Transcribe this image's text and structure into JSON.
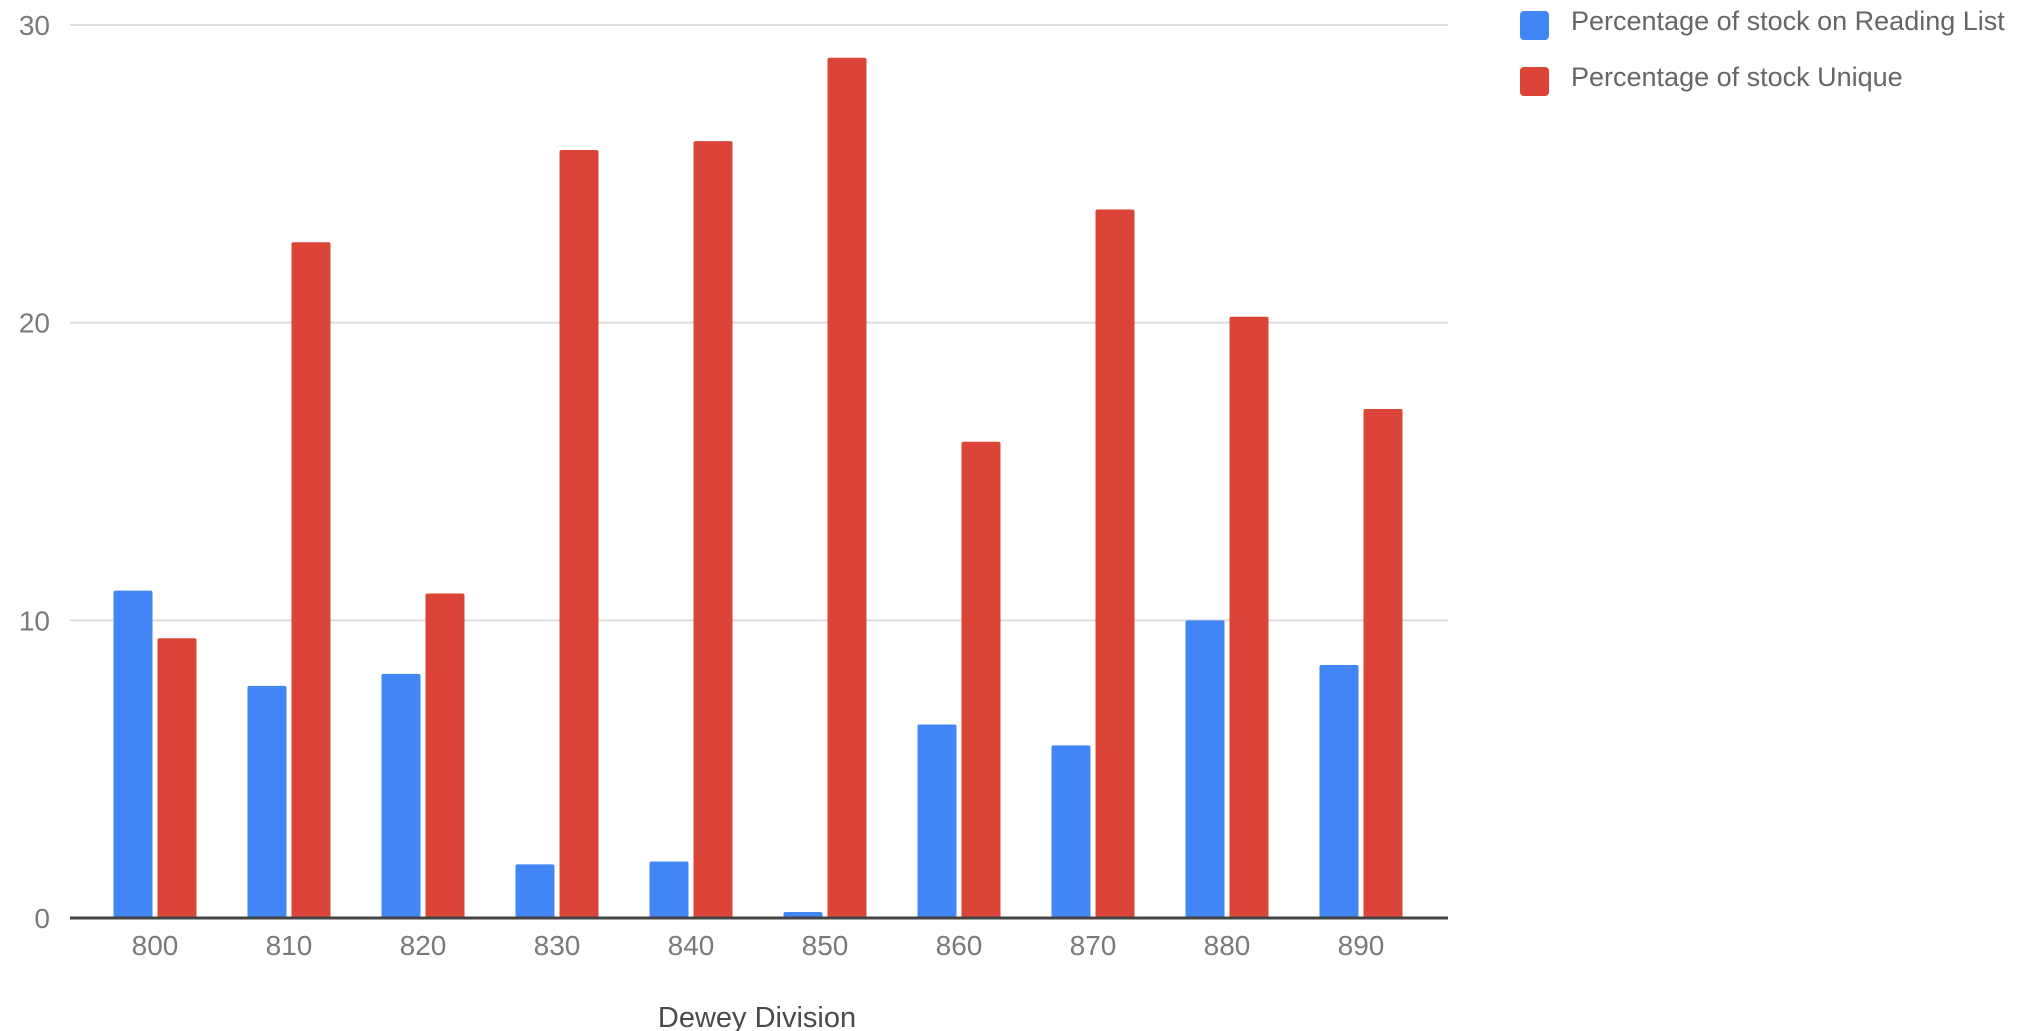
{
  "chart_data": {
    "type": "bar",
    "title": "",
    "xlabel": "Dewey Division",
    "ylabel": "",
    "categories": [
      "800",
      "810",
      "820",
      "830",
      "840",
      "850",
      "860",
      "870",
      "880",
      "890"
    ],
    "series": [
      {
        "name": "Percentage of stock on Reading List",
        "color": "#4285F4",
        "values": [
          11.0,
          7.8,
          8.2,
          1.8,
          1.9,
          0.2,
          6.5,
          5.8,
          10.0,
          8.5
        ]
      },
      {
        "name": "Percentage of stock Unique",
        "color": "#DB4437",
        "values": [
          9.4,
          22.7,
          10.9,
          25.8,
          26.1,
          28.9,
          16.0,
          23.8,
          20.2,
          17.1
        ]
      }
    ],
    "yticks": [
      "0",
      "10",
      "20",
      "30"
    ],
    "ylim": [
      0,
      30
    ],
    "grid": true,
    "legend_position": "right"
  }
}
